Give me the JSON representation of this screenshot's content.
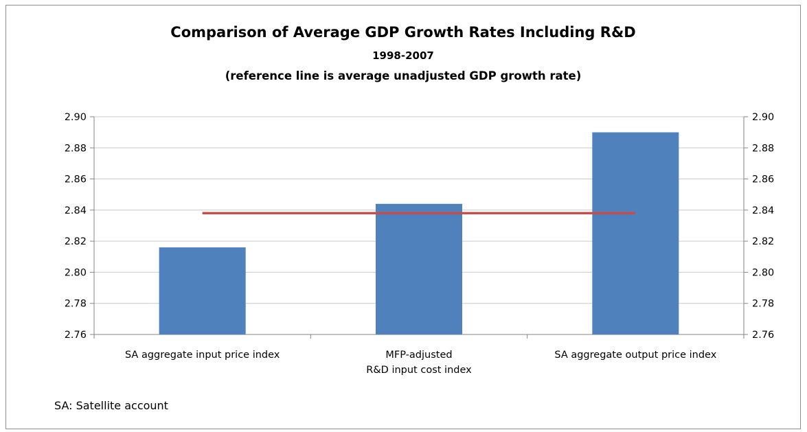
{
  "chart_data": {
    "type": "bar",
    "title": "Comparison of Average GDP Growth Rates Including R&D",
    "subtitle": "1998-2007",
    "note": "(reference line is average unadjusted GDP growth rate)",
    "categories": [
      [
        "SA aggregate input price index"
      ],
      [
        "MFP-adjusted",
        "R&D input cost index"
      ],
      [
        "SA aggregate output price index"
      ]
    ],
    "values": [
      2.816,
      2.844,
      2.89
    ],
    "reference_line": 2.838,
    "ylim": [
      2.76,
      2.9
    ],
    "yticks": [
      "2.90",
      "2.88",
      "2.86",
      "2.84",
      "2.82",
      "2.80",
      "2.78",
      "2.76"
    ],
    "xlabel": "",
    "ylabel": "",
    "grid": true,
    "secondary_axis": true,
    "bar_color": "#4f81bd",
    "line_color": "#c0504d",
    "footnote": "SA: Satellite account"
  }
}
